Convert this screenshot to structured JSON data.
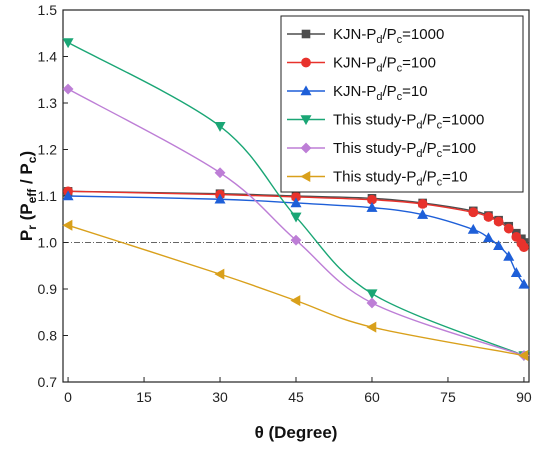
{
  "chart_data": {
    "type": "line",
    "xlabel": "θ (Degree)",
    "ylabel": "Pr (Peff / Pc)",
    "xlim": [
      -1,
      91
    ],
    "ylim": [
      0.7,
      1.5
    ],
    "xticks": [
      0,
      15,
      30,
      45,
      60,
      75,
      90
    ],
    "yticks": [
      0.7,
      0.8,
      0.9,
      1.0,
      1.1,
      1.2,
      1.3,
      1.4,
      1.5
    ],
    "xtick_labels": [
      "0",
      "15",
      "30",
      "45",
      "60",
      "75",
      "90"
    ],
    "ytick_labels": [
      "0.7",
      "0.8",
      "0.9",
      "1.0",
      "1.1",
      "1.2",
      "1.3",
      "1.4",
      "1.5"
    ],
    "reference_line": {
      "y": 1.0,
      "style": "dash-dot"
    },
    "legend_position": "top-right",
    "grid": false,
    "series": [
      {
        "name": "KJN-Pd/Pc=1000",
        "label_parts": [
          "KJN-P",
          "d",
          "/P",
          "c",
          "=1000"
        ],
        "color": "#4d4d4d",
        "marker": "square",
        "x": [
          0,
          30,
          45,
          60,
          70,
          80,
          83,
          85,
          87,
          88.5,
          89.5,
          90
        ],
        "y": [
          1.11,
          1.105,
          1.1,
          1.095,
          1.085,
          1.068,
          1.058,
          1.048,
          1.035,
          1.02,
          1.008,
          1.0
        ]
      },
      {
        "name": "KJN-Pd/Pc=100",
        "label_parts": [
          "KJN-P",
          "d",
          "/P",
          "c",
          "=100"
        ],
        "color": "#e8322c",
        "marker": "circle",
        "x": [
          0,
          30,
          45,
          60,
          70,
          80,
          83,
          85,
          87,
          88.5,
          89.5,
          90
        ],
        "y": [
          1.11,
          1.103,
          1.098,
          1.092,
          1.083,
          1.065,
          1.055,
          1.045,
          1.03,
          1.012,
          0.998,
          0.99
        ]
      },
      {
        "name": "KJN-Pd/Pc=10",
        "label_parts": [
          "KJN-P",
          "d",
          "/P",
          "c",
          "=10"
        ],
        "color": "#1e5fd8",
        "marker": "triangle-up",
        "x": [
          0,
          30,
          45,
          60,
          70,
          80,
          83,
          85,
          87,
          88.5,
          90
        ],
        "y": [
          1.1,
          1.093,
          1.085,
          1.075,
          1.06,
          1.028,
          1.01,
          0.993,
          0.97,
          0.935,
          0.91
        ]
      },
      {
        "name": "This study-Pd/Pc=1000",
        "label_parts": [
          "This study-P",
          "d",
          "/P",
          "c",
          "=1000"
        ],
        "color": "#1aa675",
        "marker": "triangle-down",
        "x": [
          0,
          30,
          45,
          60,
          90
        ],
        "y": [
          1.43,
          1.25,
          1.055,
          0.89,
          0.757
        ]
      },
      {
        "name": "This study-Pd/Pc=100",
        "label_parts": [
          "This study-P",
          "d",
          "/P",
          "c",
          "=100"
        ],
        "color": "#bd7ed6",
        "marker": "diamond",
        "x": [
          0,
          30,
          45,
          60,
          90
        ],
        "y": [
          1.33,
          1.15,
          1.005,
          0.87,
          0.757
        ]
      },
      {
        "name": "This study-Pd/Pc=10",
        "label_parts": [
          "This study-P",
          "d",
          "/P",
          "c",
          "=10"
        ],
        "color": "#d9a01b",
        "marker": "triangle-left",
        "x": [
          0,
          30,
          45,
          60,
          90
        ],
        "y": [
          1.037,
          0.932,
          0.875,
          0.818,
          0.757
        ]
      }
    ]
  }
}
